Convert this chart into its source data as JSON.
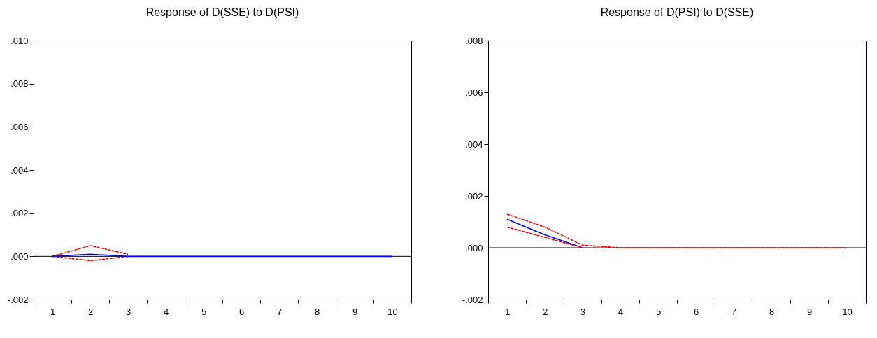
{
  "chart_data": [
    {
      "type": "line",
      "title": "Response of D(SSE) to D(PSI)",
      "categories": [
        "1",
        "2",
        "3",
        "4",
        "5",
        "6",
        "7",
        "8",
        "9",
        "10"
      ],
      "ylim": [
        -0.002,
        0.01
      ],
      "yticks": [
        {
          "value": -0.002,
          "label": "-.002"
        },
        {
          "value": 0,
          "label": ".000"
        },
        {
          "value": 0.002,
          "label": ".002"
        },
        {
          "value": 0.004,
          "label": ".004"
        },
        {
          "value": 0.006,
          "label": ".006"
        },
        {
          "value": 0.008,
          "label": ".008"
        },
        {
          "value": 0.01,
          "label": ".010"
        }
      ],
      "grid": false,
      "series": [
        {
          "color": "#ff0000",
          "line_style": "dashed",
          "values": [
            0,
            0.0005,
            0.0001,
            null,
            null,
            null,
            null,
            null,
            null,
            null
          ]
        },
        {
          "color": "#ff0000",
          "line_style": "dashed",
          "values": [
            0,
            -0.0002,
            0,
            null,
            null,
            null,
            null,
            null,
            null,
            null
          ]
        },
        {
          "color": "#0000ff",
          "line_style": "solid",
          "values": [
            0,
            0.0001,
            0,
            0,
            0,
            0,
            0,
            0,
            0,
            0
          ]
        }
      ],
      "ref_lines": [
        {
          "axis": "y",
          "value": 0,
          "color": "#000000"
        }
      ]
    },
    {
      "type": "line",
      "title": "Response of D(PSI) to D(SSE)",
      "categories": [
        "1",
        "2",
        "3",
        "4",
        "5",
        "6",
        "7",
        "8",
        "9",
        "10"
      ],
      "ylim": [
        -0.002,
        0.008
      ],
      "yticks": [
        {
          "value": -0.002,
          "label": "-.002"
        },
        {
          "value": 0,
          "label": ".000"
        },
        {
          "value": 0.002,
          "label": ".002"
        },
        {
          "value": 0.004,
          "label": ".004"
        },
        {
          "value": 0.006,
          "label": ".006"
        },
        {
          "value": 0.008,
          "label": ".008"
        }
      ],
      "grid": false,
      "series": [
        {
          "color": "#0000ff",
          "line_style": "solid",
          "values": [
            0.0011,
            0.0005,
            0,
            null,
            null,
            null,
            null,
            null,
            null,
            null
          ]
        },
        {
          "color": "#ff0000",
          "line_style": "dashed",
          "values": [
            0.0008,
            0.0004,
            0,
            null,
            null,
            null,
            null,
            null,
            null,
            null
          ]
        },
        {
          "color": "#ff0000",
          "line_style": "dashed",
          "values": [
            0.0013,
            0.0008,
            0.0001,
            0,
            0,
            0,
            0,
            0,
            0,
            0
          ]
        }
      ],
      "ref_lines": [
        {
          "axis": "y",
          "value": 0,
          "color": "#000000"
        }
      ]
    }
  ]
}
